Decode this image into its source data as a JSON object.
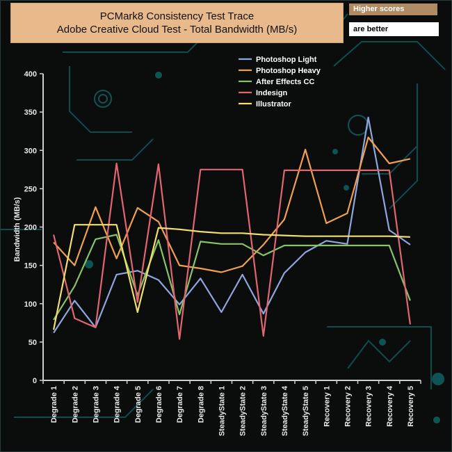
{
  "header": {
    "title_line1": "PCMark8 Consistency Test Trace",
    "title_line2": "Adobe Creative Cloud Test - Total Bandwidth (MB/s)",
    "note_top": "Higher scores",
    "note_bottom": "are better"
  },
  "colors": {
    "background": "#0b0d0d",
    "decor": "#0f5454",
    "axis": "#cfcfcf",
    "title_box": "#e8b98b"
  },
  "chart_data": {
    "type": "line",
    "title": "PCMark8 Consistency Test Trace\nAdobe Creative Cloud Test - Total Bandwidth (MB/s)",
    "xlabel": "",
    "ylabel": "Bandwidth (MB/s)",
    "ylim": [
      0,
      400
    ],
    "yticks": [
      0,
      50,
      100,
      150,
      200,
      250,
      300,
      350,
      400
    ],
    "grid": false,
    "legend_position": "top-right",
    "categories": [
      "Degrade 1",
      "Degrade 2",
      "Degrade 3",
      "Degrade 4",
      "Degrade 5",
      "Degrade 6",
      "Degrade 7",
      "Degrade 8",
      "SteadyState 1",
      "SteadyState 2",
      "SteadyState 3",
      "SteadyState 4",
      "SteadyState 5",
      "Recovery 1",
      "Recovery 2",
      "Recovery 3",
      "Recovery 4",
      "Recovery 5"
    ],
    "series": [
      {
        "name": "Photoshop Light",
        "color": "#8fa6de",
        "values": [
          62,
          104,
          69,
          138,
          143,
          131,
          99,
          133,
          89,
          138,
          87,
          140,
          167,
          182,
          178,
          343,
          196,
          177
        ]
      },
      {
        "name": " Photoshop Heavy",
        "color": "#f0a050",
        "values": [
          180,
          150,
          226,
          159,
          225,
          207,
          150,
          146,
          141,
          149,
          177,
          210,
          301,
          205,
          218,
          317,
          283,
          289
        ]
      },
      {
        "name": "After Effects CC",
        "color": "#88c467",
        "values": [
          79,
          123,
          184,
          190,
          111,
          183,
          86,
          181,
          178,
          178,
          163,
          176,
          176,
          176,
          176,
          176,
          176,
          104
        ]
      },
      {
        "name": "Indesign",
        "color": "#e26670",
        "values": [
          190,
          81,
          69,
          283,
          102,
          282,
          54,
          275,
          275,
          275,
          58,
          274,
          274,
          274,
          274,
          274,
          274,
          73
        ]
      },
      {
        "name": "Illustrator",
        "color": "#f1e070",
        "values": [
          66,
          203,
          203,
          203,
          89,
          199,
          197,
          194,
          192,
          192,
          190,
          189,
          188,
          188,
          188,
          188,
          188,
          187
        ]
      }
    ]
  }
}
